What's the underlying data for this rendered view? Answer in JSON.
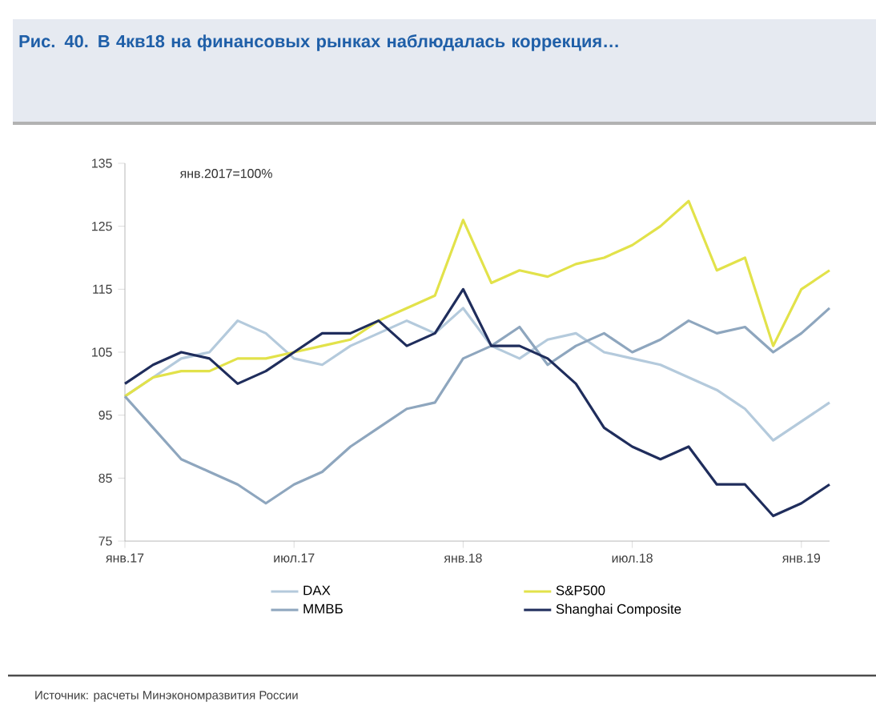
{
  "chart_data": {
    "type": "line",
    "title": "Рис. 40. В 4кв18 на финансовых рынках наблюдалась коррекция…",
    "annotations": [
      "янв.2017=100%",
      "Источник: расчеты Минэкономразвития России"
    ],
    "xlim": [
      "2017-01",
      "2019-02"
    ],
    "xticks": [
      {
        "value": "2017-01",
        "label": "янв.17"
      },
      {
        "value": "2017-07",
        "label": "июл.17"
      },
      {
        "value": "2018-01",
        "label": "янв.18"
      },
      {
        "value": "2018-07",
        "label": "июл.18"
      },
      {
        "value": "2019-01",
        "label": "янв.19"
      }
    ],
    "ylim": [
      75,
      135
    ],
    "yticks": [
      75,
      85,
      95,
      105,
      115,
      125,
      135
    ],
    "grid": false,
    "legend": "bottom",
    "marker": "none",
    "line_style": "solid",
    "series": [
      {
        "name": "DAX",
        "color": "#b4cadc",
        "x": [
          "2017-01",
          "2017-02",
          "2017-03",
          "2017-04",
          "2017-05",
          "2017-06",
          "2017-07",
          "2017-08",
          "2017-09",
          "2017-10",
          "2017-11",
          "2017-12",
          "2018-01",
          "2018-02",
          "2018-03",
          "2018-04",
          "2018-05",
          "2018-06",
          "2018-07",
          "2018-08",
          "2018-09",
          "2018-10",
          "2018-11",
          "2018-12",
          "2019-01",
          "2019-02"
        ],
        "values": [
          98,
          101,
          104,
          105,
          110,
          108,
          104,
          103,
          106,
          108,
          110,
          108,
          112,
          106,
          104,
          107,
          108,
          105,
          104,
          103,
          101,
          99,
          96,
          91,
          94,
          97
        ]
      },
      {
        "name": "S&P500",
        "color": "#e2e24a",
        "x": [
          "2017-01",
          "2017-02",
          "2017-03",
          "2017-04",
          "2017-05",
          "2017-06",
          "2017-07",
          "2017-08",
          "2017-09",
          "2017-10",
          "2017-11",
          "2017-12",
          "2018-01",
          "2018-02",
          "2018-03",
          "2018-04",
          "2018-05",
          "2018-06",
          "2018-07",
          "2018-08",
          "2018-09",
          "2018-10",
          "2018-11",
          "2018-12",
          "2019-01",
          "2019-02"
        ],
        "values": [
          98,
          101,
          102,
          102,
          104,
          104,
          105,
          106,
          107,
          110,
          112,
          114,
          126,
          116,
          118,
          117,
          119,
          120,
          122,
          125,
          129,
          118,
          120,
          106,
          115,
          118
        ]
      },
      {
        "name": "ММВБ",
        "color": "#8ea6be",
        "x": [
          "2017-01",
          "2017-02",
          "2017-03",
          "2017-04",
          "2017-05",
          "2017-06",
          "2017-07",
          "2017-08",
          "2017-09",
          "2017-10",
          "2017-11",
          "2017-12",
          "2018-01",
          "2018-02",
          "2018-03",
          "2018-04",
          "2018-05",
          "2018-06",
          "2018-07",
          "2018-08",
          "2018-09",
          "2018-10",
          "2018-11",
          "2018-12",
          "2019-01",
          "2019-02"
        ],
        "values": [
          98,
          93,
          88,
          86,
          84,
          81,
          84,
          86,
          90,
          93,
          96,
          97,
          104,
          106,
          109,
          103,
          106,
          108,
          105,
          107,
          110,
          108,
          109,
          105,
          108,
          112
        ]
      },
      {
        "name": "Shanghai Composite",
        "color": "#1f2d5c",
        "x": [
          "2017-01",
          "2017-02",
          "2017-03",
          "2017-04",
          "2017-05",
          "2017-06",
          "2017-07",
          "2017-08",
          "2017-09",
          "2017-10",
          "2017-11",
          "2017-12",
          "2018-01",
          "2018-02",
          "2018-03",
          "2018-04",
          "2018-05",
          "2018-06",
          "2018-07",
          "2018-08",
          "2018-09",
          "2018-10",
          "2018-11",
          "2018-12",
          "2019-01",
          "2019-02"
        ],
        "values": [
          100,
          103,
          105,
          104,
          100,
          102,
          105,
          108,
          108,
          110,
          106,
          108,
          115,
          106,
          106,
          104,
          100,
          93,
          90,
          88,
          90,
          84,
          84,
          79,
          81,
          84
        ]
      }
    ]
  }
}
